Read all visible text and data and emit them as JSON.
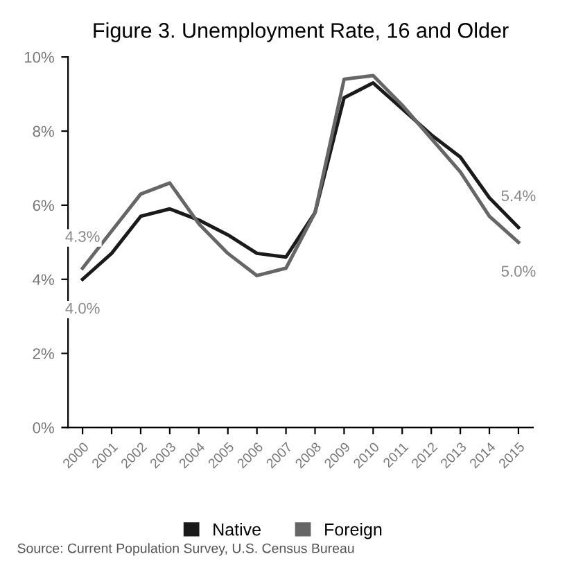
{
  "chart_data": {
    "type": "line",
    "title": "Figure 3. Unemployment Rate, 16 and Older",
    "categories": [
      "2000",
      "2001",
      "2002",
      "2003",
      "2004",
      "2005",
      "2006",
      "2007",
      "2008",
      "2009",
      "2010",
      "2011",
      "2012",
      "2013",
      "2014",
      "2015"
    ],
    "series": [
      {
        "name": "Native",
        "color": "#1a1a1a",
        "values": [
          4.0,
          4.7,
          5.7,
          5.9,
          5.6,
          5.2,
          4.7,
          4.6,
          5.8,
          8.9,
          9.3,
          8.6,
          7.9,
          7.3,
          6.2,
          5.4
        ]
      },
      {
        "name": "Foreign",
        "color": "#666666",
        "values": [
          4.3,
          5.3,
          6.3,
          6.6,
          5.5,
          4.7,
          4.1,
          4.3,
          5.8,
          9.4,
          9.5,
          8.7,
          7.8,
          6.9,
          5.7,
          5.0
        ]
      }
    ],
    "ylim": [
      0,
      10
    ],
    "yticks": [
      {
        "value": 0,
        "label": "0%"
      },
      {
        "value": 2,
        "label": "2%"
      },
      {
        "value": 4,
        "label": "4%"
      },
      {
        "value": 6,
        "label": "6%"
      },
      {
        "value": 8,
        "label": "8%"
      },
      {
        "value": 10,
        "label": "10%"
      }
    ],
    "annotations": [
      {
        "text": "4.3%",
        "x": "2000",
        "y": 4.3
      },
      {
        "text": "4.0%",
        "x": "2000",
        "y": 4.0
      },
      {
        "text": "5.4%",
        "x": "2015",
        "y": 5.4
      },
      {
        "text": "5.0%",
        "x": "2015",
        "y": 5.0
      },
      "Source: Current Population Survey, U.S. Census Bureau"
    ],
    "legend": "bottom",
    "grid": false,
    "marker": "none",
    "line_style": "solid"
  }
}
